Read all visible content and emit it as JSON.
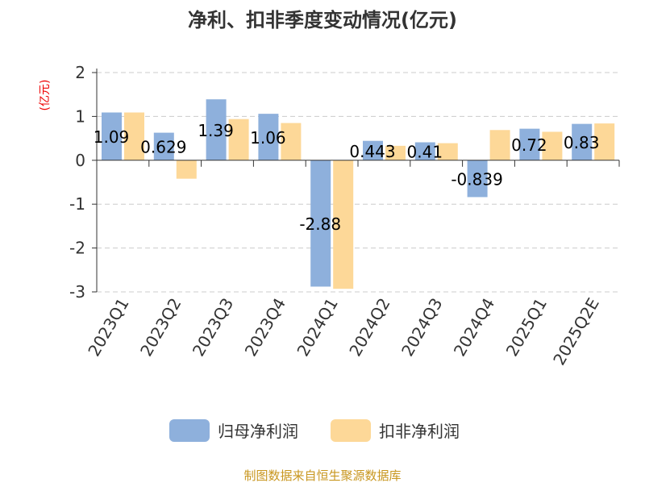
{
  "chart_data": {
    "type": "bar",
    "title": "净利、扣非季度变动情况(亿元)",
    "ylabel": "(亿元)",
    "ylim": [
      -3,
      2
    ],
    "yticks": [
      2,
      1,
      0,
      -1,
      -2,
      -3
    ],
    "grid": true,
    "legend_position": "bottom",
    "categories": [
      "2023Q1",
      "2023Q2",
      "2023Q3",
      "2023Q4",
      "2024Q1",
      "2024Q2",
      "2024Q3",
      "2024Q4",
      "2025Q1",
      "2025Q2E"
    ],
    "series": [
      {
        "name": "归母净利润",
        "color": "#8eb0dc",
        "values": [
          1.09,
          0.629,
          1.39,
          1.06,
          -2.88,
          0.443,
          0.41,
          -0.839,
          0.72,
          0.83
        ],
        "labels": [
          "1.09",
          "0.629",
          "1.39",
          "1.06",
          "-2.88",
          "0.443",
          "0.41",
          "-0.839",
          "0.72",
          "0.83"
        ]
      },
      {
        "name": "扣非净利润",
        "color": "#fdd898",
        "values": [
          1.09,
          -0.42,
          0.94,
          0.85,
          -2.93,
          0.33,
          0.39,
          0.69,
          0.65,
          0.84
        ]
      }
    ]
  },
  "footer": "制图数据来自恒生聚源数据库"
}
